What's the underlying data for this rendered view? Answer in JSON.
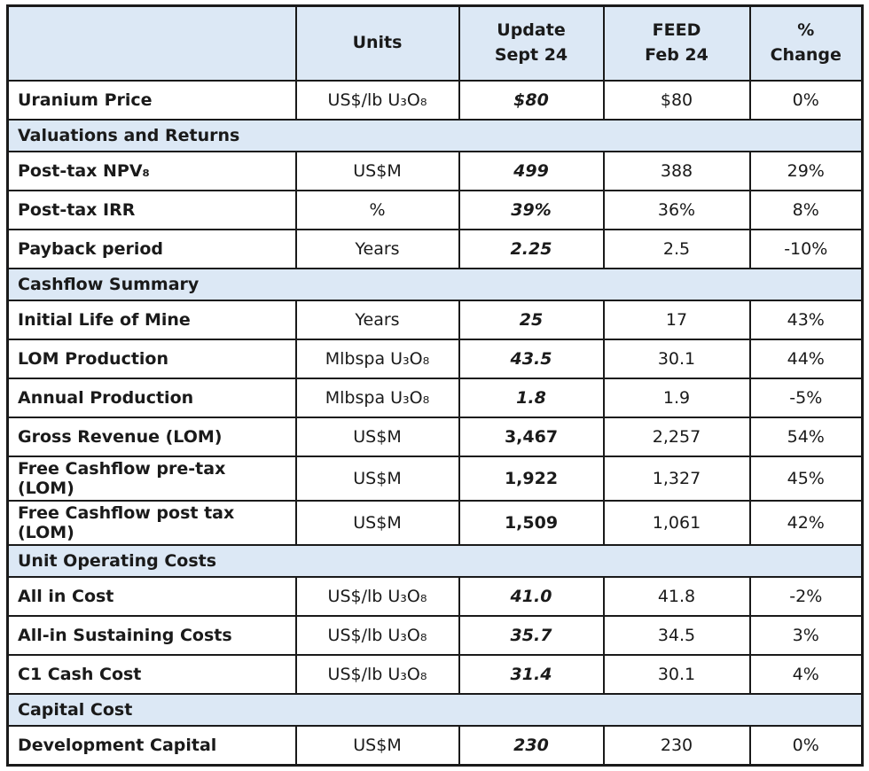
{
  "colors": {
    "header_bg": "#dce8f5",
    "section_bg": "#dce8f5",
    "border": "#1a1a1a",
    "text": "#1a1a1a"
  },
  "chart_data": {
    "type": "table",
    "title": "Project economics update vs FEED comparison table",
    "columns": [
      "",
      "Units",
      "Update\nSept 24",
      "FEED\nFeb 24",
      "%\nChange"
    ],
    "rows": [
      {
        "type": "data",
        "label": "Uranium Price",
        "units": "US$/lb U₃O₈",
        "update": "$80",
        "feed": "$80",
        "change": "0%",
        "update_italic": true
      },
      {
        "type": "section",
        "label": "Valuations and Returns"
      },
      {
        "type": "data",
        "label": "Post-tax NPV₈",
        "units": "US$M",
        "update": "499",
        "feed": "388",
        "change": "29%",
        "update_italic": true
      },
      {
        "type": "data",
        "label": "Post-tax IRR",
        "units": "%",
        "update": "39%",
        "feed": "36%",
        "change": "8%",
        "update_italic": true
      },
      {
        "type": "data",
        "label": "Payback period",
        "units": "Years",
        "update": "2.25",
        "feed": "2.5",
        "change": "-10%",
        "update_italic": true
      },
      {
        "type": "section",
        "label": "Cashflow Summary"
      },
      {
        "type": "data",
        "label": "Initial Life of Mine",
        "units": "Years",
        "update": "25",
        "feed": "17",
        "change": "43%",
        "update_italic": true
      },
      {
        "type": "data",
        "label": "LOM Production",
        "units": "Mlbspa U₃O₈",
        "update": "43.5",
        "feed": "30.1",
        "change": "44%",
        "update_italic": true
      },
      {
        "type": "data",
        "label": "Annual Production",
        "units": "Mlbspa U₃O₈",
        "update": "1.8",
        "feed": "1.9",
        "change": "-5%",
        "update_italic": true
      },
      {
        "type": "data",
        "label": "Gross Revenue (LOM)",
        "units": "US$M",
        "update": "3,467",
        "feed": "2,257",
        "change": "54%",
        "update_italic": false
      },
      {
        "type": "data",
        "label": "Free Cashflow pre-tax (LOM)",
        "units": "US$M",
        "update": "1,922",
        "feed": "1,327",
        "change": "45%",
        "update_italic": false
      },
      {
        "type": "data",
        "label": "Free Cashflow post tax (LOM)",
        "units": "US$M",
        "update": "1,509",
        "feed": "1,061",
        "change": "42%",
        "update_italic": false
      },
      {
        "type": "section",
        "label": "Unit Operating Costs"
      },
      {
        "type": "data",
        "label": "All in Cost",
        "units": "US$/lb U₃O₈",
        "update": "41.0",
        "feed": "41.8",
        "change": "-2%",
        "update_italic": true
      },
      {
        "type": "data",
        "label": "All-in Sustaining Costs",
        "units": "US$/lb U₃O₈",
        "update": "35.7",
        "feed": "34.5",
        "change": "3%",
        "update_italic": true
      },
      {
        "type": "data",
        "label": "C1 Cash Cost",
        "units": "US$/lb U₃O₈",
        "update": "31.4",
        "feed": "30.1",
        "change": "4%",
        "update_italic": true
      },
      {
        "type": "section",
        "label": "Capital Cost"
      },
      {
        "type": "data",
        "label": "Development Capital",
        "units": "US$M",
        "update": "230",
        "feed": "230",
        "change": "0%",
        "update_italic": true
      }
    ]
  }
}
